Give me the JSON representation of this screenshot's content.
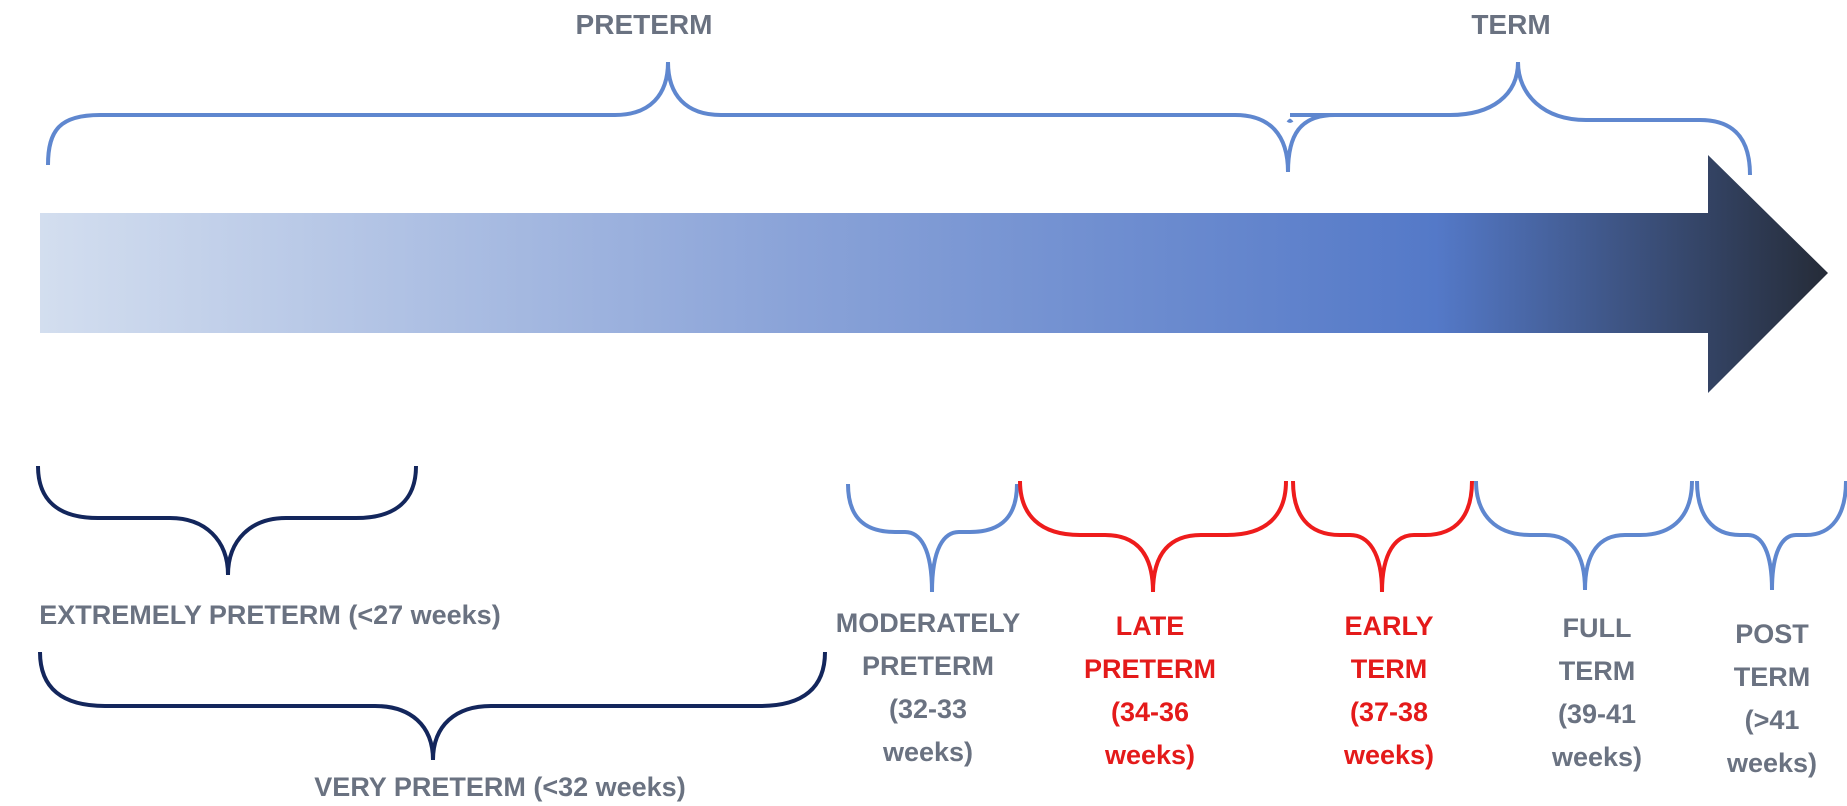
{
  "colors": {
    "brace_light": "#5f87cf",
    "brace_dark": "#13265c",
    "brace_red": "#ee1c1c",
    "label_gray": "#6a7281",
    "label_red": "#e41a1a",
    "arrow_start": "#d3deef",
    "arrow_mid": "#5479c8",
    "arrow_end": "#252b37"
  },
  "top_labels": {
    "preterm": "PRETERM",
    "term": "TERM"
  },
  "left_labels": {
    "extremely_preterm": "EXTREMELY PRETERM (<27 weeks)",
    "very_preterm": "VERY PRETERM (<32 weeks)"
  },
  "categories": [
    {
      "lines": [
        "MODERATELY",
        "PRETERM",
        "(32-33",
        "weeks)"
      ],
      "highlight": false
    },
    {
      "lines": [
        "LATE",
        "PRETERM",
        "(34-36",
        "weeks)"
      ],
      "highlight": true
    },
    {
      "lines": [
        "EARLY",
        "TERM",
        "(37-38",
        "weeks)"
      ],
      "highlight": true
    },
    {
      "lines": [
        "FULL",
        "TERM",
        "(39-41",
        "weeks)"
      ],
      "highlight": false
    },
    {
      "lines": [
        "POST",
        "TERM",
        "(>41",
        "weeks)"
      ],
      "highlight": false
    }
  ]
}
